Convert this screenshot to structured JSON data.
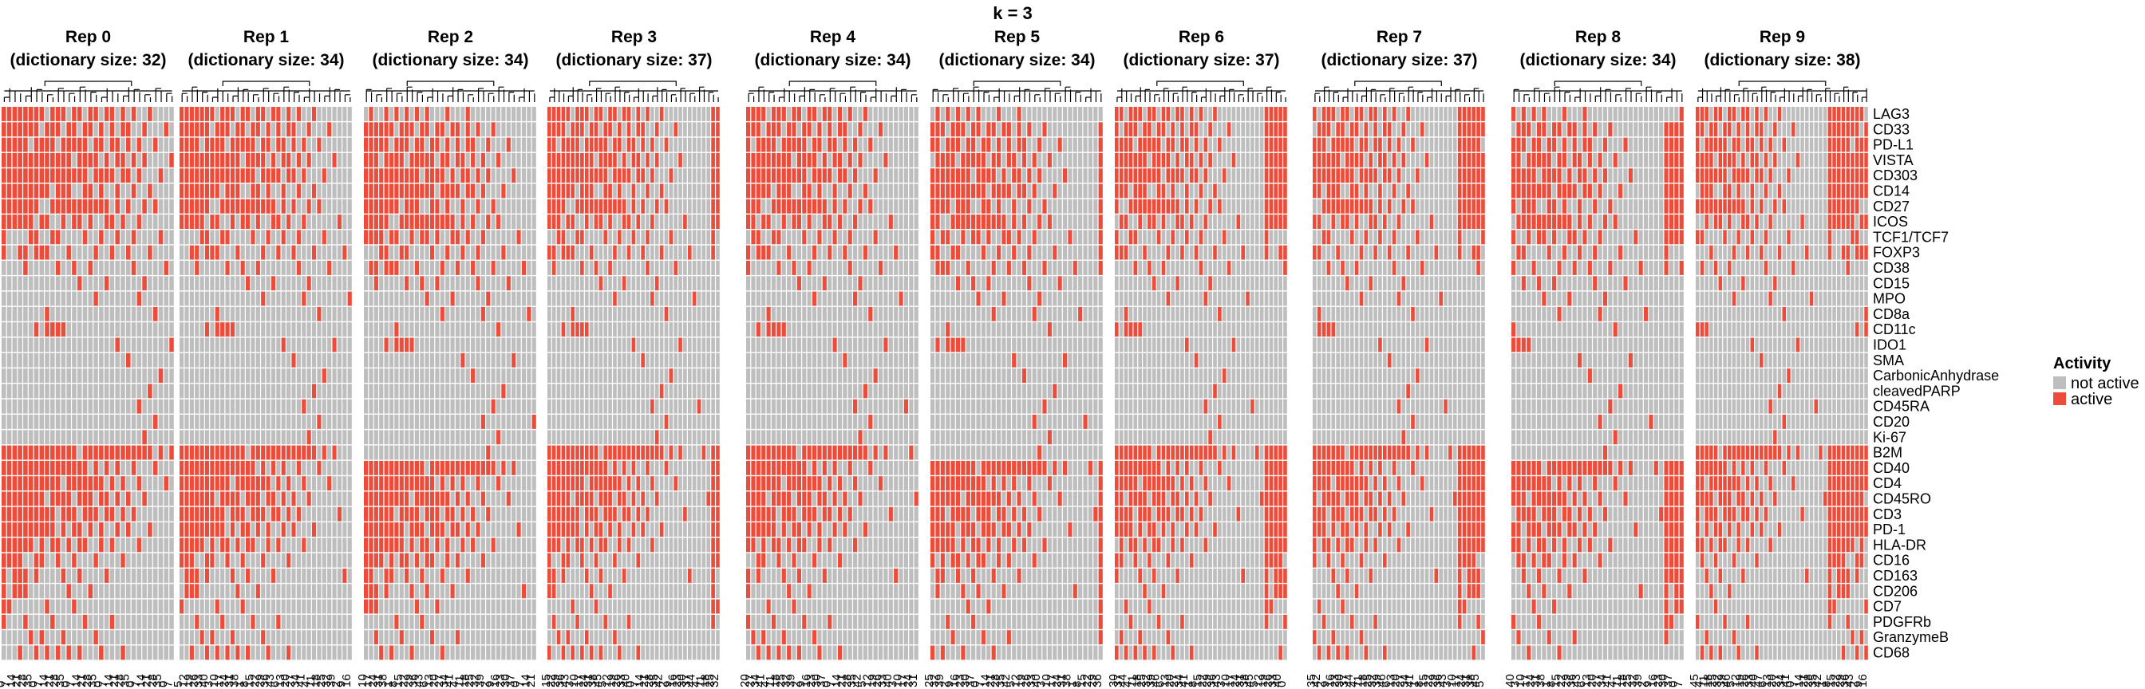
{
  "chart_data": {
    "type": "heatmap",
    "title": "k = 3",
    "legend": {
      "title": "Activity",
      "entries": [
        "not active",
        "active"
      ],
      "colors": {
        "not active": "#bebebe",
        "active": "#ee4c3b"
      },
      "placement": "right"
    },
    "row_labels": [
      "LAG3",
      "CD33",
      "PD-L1",
      "VISTA",
      "CD303",
      "CD14",
      "CD27",
      "ICOS",
      "TCF1/TCF7",
      "FOXP3",
      "CD38",
      "CD15",
      "MPO",
      "CD8a",
      "CD11c",
      "IDO1",
      "SMA",
      "CarbonicAnhydrase",
      "cleavedPARP",
      "CD45RA",
      "CD20",
      "Ki-67",
      "B2M",
      "CD40",
      "CD4",
      "CD45RO",
      "CD3",
      "PD-1",
      "HLA-DR",
      "CD16",
      "CD163",
      "CD206",
      "CD7",
      "PDGFRb",
      "GranzymeB",
      "CD68"
    ],
    "panels": [
      {
        "title": "Rep 0",
        "subtitle": "(dictionary size: 32)",
        "dictionary_size": 32
      },
      {
        "title": "Rep 1",
        "subtitle": "(dictionary size: 34)",
        "dictionary_size": 34
      },
      {
        "title": "Rep 2",
        "subtitle": "(dictionary size: 34)",
        "dictionary_size": 34
      },
      {
        "title": "Rep 3",
        "subtitle": "(dictionary size: 37)",
        "dictionary_size": 37
      },
      {
        "title": "Rep 4",
        "subtitle": "(dictionary size: 34)",
        "dictionary_size": 34
      },
      {
        "title": "Rep 5",
        "subtitle": "(dictionary size: 34)",
        "dictionary_size": 34
      },
      {
        "title": "Rep 6",
        "subtitle": "(dictionary size: 37)",
        "dictionary_size": 37
      },
      {
        "title": "Rep 7",
        "subtitle": "(dictionary size: 37)",
        "dictionary_size": 37
      },
      {
        "title": "Rep 8",
        "subtitle": "(dictionary size: 34)",
        "dictionary_size": 34
      },
      {
        "title": "Rep 9",
        "subtitle": "(dictionary size: 38)",
        "dictionary_size": 38
      }
    ],
    "active_rows_by_column_template": [
      [
        0,
        1,
        2,
        3,
        4,
        5,
        6,
        7,
        8,
        9,
        22,
        23,
        24,
        25,
        26,
        27,
        28,
        29,
        30,
        31,
        32,
        33
      ],
      [
        0,
        1,
        2,
        3,
        4,
        5,
        6,
        7,
        22,
        23,
        24,
        25,
        26,
        27,
        28,
        29,
        32
      ],
      [
        0,
        1,
        2,
        3,
        4,
        5,
        6,
        7,
        22,
        23,
        24,
        25,
        26,
        27,
        28,
        29,
        30,
        31
      ],
      [
        0,
        1,
        2,
        3,
        4,
        5,
        6,
        7,
        9,
        22,
        23,
        24,
        25,
        26,
        27,
        28,
        29,
        30,
        31,
        35
      ],
      [
        0,
        1,
        2,
        3,
        4,
        5,
        6,
        7,
        9,
        10,
        22,
        23,
        24,
        25,
        26,
        27,
        28,
        30,
        31,
        33
      ],
      [
        0,
        1,
        3,
        4,
        5,
        6,
        7,
        8,
        22,
        23,
        24,
        25,
        26,
        27,
        28,
        34
      ],
      [
        0,
        1,
        2,
        3,
        4,
        5,
        6,
        8,
        9,
        14,
        22,
        23,
        24,
        25,
        26,
        27,
        29,
        30,
        35
      ],
      [
        0,
        2,
        3,
        4,
        5,
        7,
        9,
        22,
        23,
        24,
        25,
        26,
        27,
        28,
        29,
        34
      ],
      [
        1,
        2,
        3,
        4,
        5,
        7,
        9,
        13,
        14,
        22,
        23,
        24,
        26,
        27,
        32,
        35
      ],
      [
        0,
        1,
        2,
        3,
        4,
        6,
        8,
        14,
        22,
        23,
        24,
        25,
        26,
        27,
        28,
        33
      ],
      [
        0,
        1,
        3,
        4,
        5,
        6,
        8,
        10,
        14,
        22,
        23,
        24,
        25,
        28,
        29,
        35
      ],
      [
        0,
        2,
        3,
        4,
        5,
        6,
        7,
        14,
        22,
        23,
        25,
        26,
        27,
        30,
        34
      ],
      [
        1,
        2,
        3,
        4,
        5,
        6,
        9,
        22,
        23,
        24,
        25,
        26,
        28,
        31,
        35
      ],
      [
        0,
        1,
        2,
        4,
        6,
        7,
        10,
        22,
        23,
        24,
        26,
        27,
        29,
        32
      ],
      [
        0,
        2,
        3,
        4,
        6,
        7,
        11,
        23,
        24,
        25,
        27,
        28,
        30,
        35
      ],
      [
        1,
        2,
        3,
        4,
        5,
        6,
        8,
        22,
        23,
        24,
        25,
        26,
        28,
        33
      ],
      [
        0,
        1,
        3,
        5,
        6,
        7,
        10,
        22,
        24,
        25,
        26,
        27,
        31
      ],
      [
        0,
        2,
        3,
        4,
        6,
        9,
        12,
        22,
        23,
        24,
        26,
        29,
        34
      ],
      [
        1,
        2,
        4,
        5,
        6,
        8,
        22,
        24,
        25,
        27,
        28,
        35
      ],
      [
        0,
        3,
        4,
        6,
        7,
        11,
        22,
        23,
        25,
        26,
        30
      ],
      [
        0,
        1,
        2,
        4,
        7,
        9,
        22,
        24,
        26,
        28,
        33
      ],
      [
        2,
        3,
        5,
        6,
        8,
        15,
        22,
        23,
        25,
        27
      ],
      [
        0,
        1,
        3,
        4,
        7,
        22,
        24,
        26,
        29,
        35
      ],
      [
        1,
        2,
        4,
        6,
        9,
        16,
        22,
        25,
        27
      ],
      [
        0,
        3,
        5,
        8,
        10,
        22,
        23,
        26
      ],
      [
        2,
        4,
        7,
        12,
        19,
        22,
        24,
        28
      ],
      [
        1,
        3,
        6,
        11,
        21,
        22,
        25
      ],
      [
        0,
        5,
        9,
        18,
        22,
        27
      ],
      [
        2,
        6,
        13,
        20,
        23
      ],
      [
        4,
        8,
        17,
        22
      ],
      [
        1,
        10,
        24
      ],
      [
        3,
        15,
        22
      ],
      [
        7,
        26
      ],
      [
        9,
        30
      ],
      [
        12
      ],
      [
        19
      ],
      [
        22
      ],
      [
        25
      ]
    ]
  }
}
